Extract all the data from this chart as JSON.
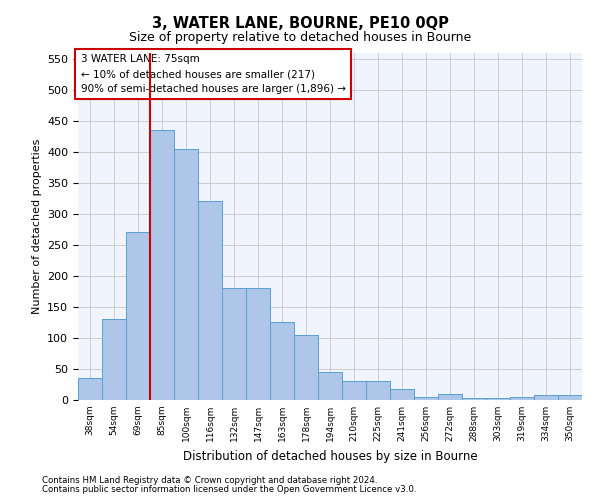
{
  "title1": "3, WATER LANE, BOURNE, PE10 0QP",
  "title2": "Size of property relative to detached houses in Bourne",
  "xlabel": "Distribution of detached houses by size in Bourne",
  "ylabel": "Number of detached properties",
  "categories": [
    "38sqm",
    "54sqm",
    "69sqm",
    "85sqm",
    "100sqm",
    "116sqm",
    "132sqm",
    "147sqm",
    "163sqm",
    "178sqm",
    "194sqm",
    "210sqm",
    "225sqm",
    "241sqm",
    "256sqm",
    "272sqm",
    "288sqm",
    "303sqm",
    "319sqm",
    "334sqm",
    "350sqm"
  ],
  "values": [
    35,
    130,
    270,
    435,
    405,
    320,
    180,
    180,
    125,
    105,
    45,
    30,
    30,
    17,
    5,
    10,
    3,
    3,
    5,
    8,
    8
  ],
  "bar_color": "#aec6e8",
  "bar_edge_color": "#5a9fd4",
  "grid_color": "#cccccc",
  "annotation_box_color": "#cc0000",
  "annotation_text": "3 WATER LANE: 75sqm\n← 10% of detached houses are smaller (217)\n90% of semi-detached houses are larger (1,896) →",
  "vline_x": 2.5,
  "vline_color": "#cc0000",
  "ylim": [
    0,
    560
  ],
  "yticks": [
    0,
    50,
    100,
    150,
    200,
    250,
    300,
    350,
    400,
    450,
    500,
    550
  ],
  "footnote1": "Contains HM Land Registry data © Crown copyright and database right 2024.",
  "footnote2": "Contains public sector information licensed under the Open Government Licence v3.0.",
  "background_color": "#f0f4ff"
}
